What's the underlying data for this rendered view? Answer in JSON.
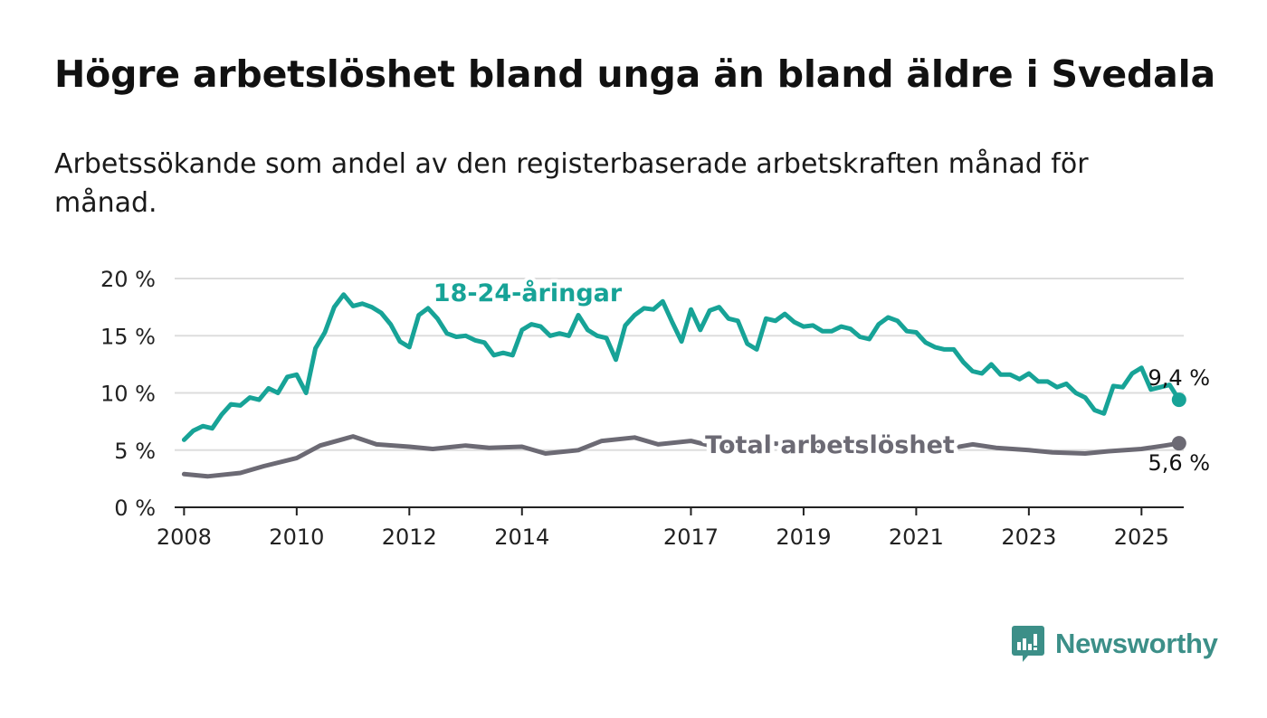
{
  "title": "Högre arbetslöshet bland unga än bland äldre i Svedala",
  "subtitle": "Arbetssökande som andel av den registerbaserade arbetskraften månad för månad.",
  "brand": {
    "name": "Newsworthy",
    "icon": "newsworthy-logo-icon",
    "color": "#3c8f88"
  },
  "colors": {
    "youth": "#17a397",
    "total": "#6c6a74",
    "grid": "#dddddd",
    "axis": "#222222"
  },
  "chart_data": {
    "type": "line",
    "title": "",
    "xlabel": "",
    "ylabel": "",
    "ylim": [
      0,
      20
    ],
    "xlim": [
      "2007-11",
      "2025-10"
    ],
    "grid": true,
    "legend": "inline labels on the lines",
    "y_ticks": [
      0,
      5,
      10,
      15,
      20
    ],
    "y_tick_labels": [
      "0 %",
      "5 %",
      "10 %",
      "15 %",
      "20 %"
    ],
    "x_ticks": [
      "2008-01",
      "2010-01",
      "2012-01",
      "2014-01",
      "2017-01",
      "2019-01",
      "2021-01",
      "2023-01",
      "2025-01"
    ],
    "x_tick_labels": [
      "2008",
      "2010",
      "2012",
      "2014",
      "2017",
      "2019",
      "2021",
      "2023",
      "2025"
    ],
    "series": [
      {
        "name": "18-24-åringar",
        "color": "#17a397",
        "last_value_label": "9,4 %",
        "points": [
          [
            "2008-01",
            5.9
          ],
          [
            "2008-03",
            6.7
          ],
          [
            "2008-05",
            7.1
          ],
          [
            "2008-07",
            6.9
          ],
          [
            "2008-09",
            8.1
          ],
          [
            "2008-11",
            9.0
          ],
          [
            "2009-01",
            8.9
          ],
          [
            "2009-03",
            9.6
          ],
          [
            "2009-05",
            9.4
          ],
          [
            "2009-07",
            10.4
          ],
          [
            "2009-09",
            10.0
          ],
          [
            "2009-11",
            11.4
          ],
          [
            "2010-01",
            11.6
          ],
          [
            "2010-03",
            10.0
          ],
          [
            "2010-05",
            13.9
          ],
          [
            "2010-07",
            15.3
          ],
          [
            "2010-09",
            17.5
          ],
          [
            "2010-11",
            18.6
          ],
          [
            "2011-01",
            17.6
          ],
          [
            "2011-03",
            17.8
          ],
          [
            "2011-05",
            17.5
          ],
          [
            "2011-07",
            17.0
          ],
          [
            "2011-09",
            16.0
          ],
          [
            "2011-11",
            14.5
          ],
          [
            "2012-01",
            14.0
          ],
          [
            "2012-03",
            16.8
          ],
          [
            "2012-05",
            17.4
          ],
          [
            "2012-07",
            16.5
          ],
          [
            "2012-09",
            15.2
          ],
          [
            "2012-11",
            14.9
          ],
          [
            "2013-01",
            15.0
          ],
          [
            "2013-03",
            14.6
          ],
          [
            "2013-05",
            14.4
          ],
          [
            "2013-07",
            13.3
          ],
          [
            "2013-09",
            13.5
          ],
          [
            "2013-11",
            13.3
          ],
          [
            "2014-01",
            15.5
          ],
          [
            "2014-03",
            16.0
          ],
          [
            "2014-05",
            15.8
          ],
          [
            "2014-07",
            15.0
          ],
          [
            "2014-09",
            15.2
          ],
          [
            "2014-11",
            15.0
          ],
          [
            "2015-01",
            16.8
          ],
          [
            "2015-03",
            15.5
          ],
          [
            "2015-05",
            15.0
          ],
          [
            "2015-07",
            14.8
          ],
          [
            "2015-09",
            12.9
          ],
          [
            "2015-11",
            15.9
          ],
          [
            "2016-01",
            16.8
          ],
          [
            "2016-03",
            17.4
          ],
          [
            "2016-05",
            17.3
          ],
          [
            "2016-07",
            18.0
          ],
          [
            "2016-09",
            16.2
          ],
          [
            "2016-11",
            14.5
          ],
          [
            "2017-01",
            17.3
          ],
          [
            "2017-03",
            15.5
          ],
          [
            "2017-05",
            17.2
          ],
          [
            "2017-07",
            17.5
          ],
          [
            "2017-09",
            16.5
          ],
          [
            "2017-11",
            16.3
          ],
          [
            "2018-01",
            14.3
          ],
          [
            "2018-03",
            13.8
          ],
          [
            "2018-05",
            16.5
          ],
          [
            "2018-07",
            16.3
          ],
          [
            "2018-09",
            16.9
          ],
          [
            "2018-11",
            16.2
          ],
          [
            "2019-01",
            15.8
          ],
          [
            "2019-03",
            15.9
          ],
          [
            "2019-05",
            15.4
          ],
          [
            "2019-07",
            15.4
          ],
          [
            "2019-09",
            15.8
          ],
          [
            "2019-11",
            15.6
          ],
          [
            "2020-01",
            14.9
          ],
          [
            "2020-03",
            14.7
          ],
          [
            "2020-05",
            16.0
          ],
          [
            "2020-07",
            16.6
          ],
          [
            "2020-09",
            16.3
          ],
          [
            "2020-11",
            15.4
          ],
          [
            "2021-01",
            15.3
          ],
          [
            "2021-03",
            14.4
          ],
          [
            "2021-05",
            14.0
          ],
          [
            "2021-07",
            13.8
          ],
          [
            "2021-09",
            13.8
          ],
          [
            "2021-11",
            12.7
          ],
          [
            "2022-01",
            11.9
          ],
          [
            "2022-03",
            11.7
          ],
          [
            "2022-05",
            12.5
          ],
          [
            "2022-07",
            11.6
          ],
          [
            "2022-09",
            11.6
          ],
          [
            "2022-11",
            11.2
          ],
          [
            "2023-01",
            11.7
          ],
          [
            "2023-03",
            11.0
          ],
          [
            "2023-05",
            11.0
          ],
          [
            "2023-07",
            10.5
          ],
          [
            "2023-09",
            10.8
          ],
          [
            "2023-11",
            10.0
          ],
          [
            "2024-01",
            9.6
          ],
          [
            "2024-03",
            8.5
          ],
          [
            "2024-05",
            8.2
          ],
          [
            "2024-07",
            10.6
          ],
          [
            "2024-09",
            10.5
          ],
          [
            "2024-11",
            11.7
          ],
          [
            "2025-01",
            12.2
          ],
          [
            "2025-03",
            10.3
          ],
          [
            "2025-05",
            10.5
          ],
          [
            "2025-07",
            10.7
          ],
          [
            "2025-09",
            9.4
          ]
        ]
      },
      {
        "name": "Total arbetslöshet",
        "color": "#6c6a74",
        "last_value_label": "5,6 %",
        "points": [
          [
            "2008-01",
            2.9
          ],
          [
            "2008-06",
            2.7
          ],
          [
            "2009-01",
            3.0
          ],
          [
            "2009-06",
            3.6
          ],
          [
            "2010-01",
            4.3
          ],
          [
            "2010-06",
            5.4
          ],
          [
            "2011-01",
            6.2
          ],
          [
            "2011-06",
            5.5
          ],
          [
            "2012-01",
            5.3
          ],
          [
            "2012-06",
            5.1
          ],
          [
            "2013-01",
            5.4
          ],
          [
            "2013-06",
            5.2
          ],
          [
            "2014-01",
            5.3
          ],
          [
            "2014-06",
            4.7
          ],
          [
            "2015-01",
            5.0
          ],
          [
            "2015-06",
            5.8
          ],
          [
            "2016-01",
            6.1
          ],
          [
            "2016-06",
            5.5
          ],
          [
            "2017-01",
            5.8
          ],
          [
            "2017-06",
            5.3
          ],
          [
            "2018-01",
            5.4
          ],
          [
            "2018-06",
            5.6
          ],
          [
            "2019-01",
            5.4
          ],
          [
            "2019-06",
            5.1
          ],
          [
            "2020-01",
            4.9
          ],
          [
            "2020-06",
            5.0
          ],
          [
            "2021-01",
            5.1
          ],
          [
            "2021-06",
            5.0
          ],
          [
            "2022-01",
            5.5
          ],
          [
            "2022-06",
            5.2
          ],
          [
            "2023-01",
            5.0
          ],
          [
            "2023-06",
            4.8
          ],
          [
            "2024-01",
            4.7
          ],
          [
            "2024-06",
            4.9
          ],
          [
            "2025-01",
            5.1
          ],
          [
            "2025-06",
            5.4
          ],
          [
            "2025-09",
            5.6
          ]
        ]
      }
    ]
  }
}
